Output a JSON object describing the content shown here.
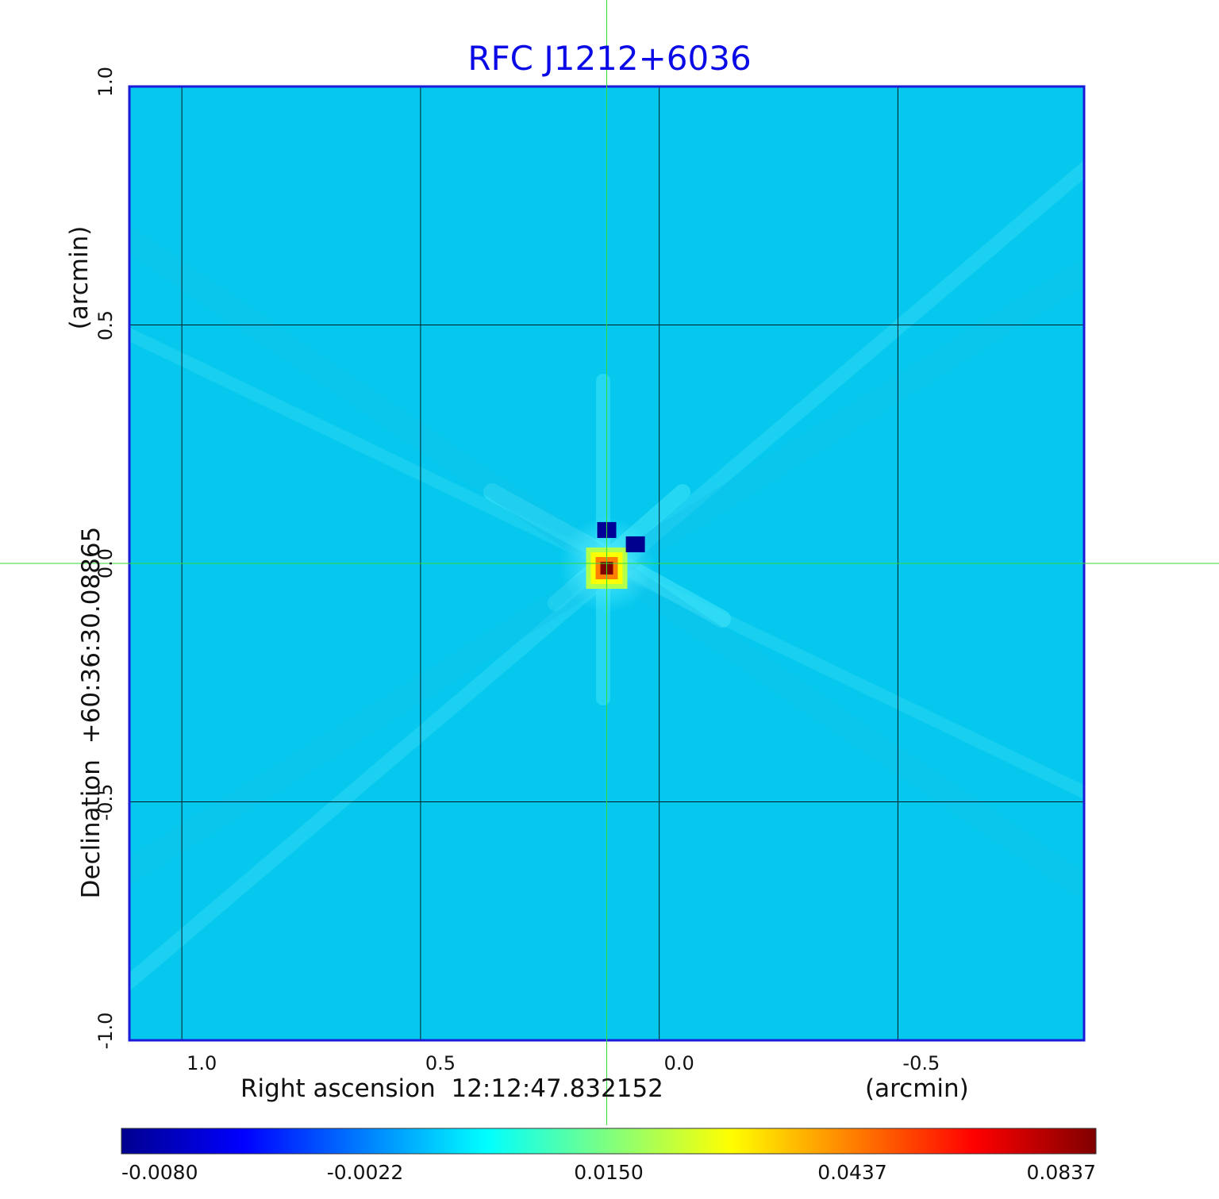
{
  "chart_data": {
    "type": "heatmap",
    "title": "RFC J1212+6036",
    "xlabel": "Right ascension  12:12:47.832152",
    "xunit": "(arcmin)",
    "ylabel": "Declination  +60:36:30.08865",
    "yunit": "(arcmin)",
    "xlim": [
      1.11,
      -0.89
    ],
    "ylim": [
      -1.0,
      1.0
    ],
    "x_ticks": [
      "1.0",
      "0.5",
      "0.0",
      "-0.5"
    ],
    "x_tick_values": [
      1.0,
      0.5,
      0.0,
      -0.5
    ],
    "y_ticks": [
      "-1.0",
      "-0.5",
      "0.0",
      "0.5",
      "1.0"
    ],
    "y_tick_values": [
      -1.0,
      -0.5,
      0.0,
      0.5,
      1.0
    ],
    "grid": true,
    "colormap": "jet",
    "colorbar_ticks": [
      "-0.0080",
      "-0.0022",
      "0.0150",
      "0.0437",
      "0.0837"
    ],
    "colorbar_range": [
      -0.008,
      0.0837
    ],
    "background_value": 0.0,
    "features": [
      {
        "kind": "peak",
        "x": 0.11,
        "y": -0.01,
        "value": 0.0837
      },
      {
        "kind": "minimum",
        "x": 0.05,
        "y": 0.04,
        "value": -0.008
      },
      {
        "kind": "minimum",
        "x": 0.11,
        "y": 0.07,
        "value": -0.007
      }
    ],
    "crosshair": {
      "x": 0.11,
      "y": 0.0
    }
  },
  "colors": {
    "title": "#0a0ae6",
    "frame": "#1a1ad8",
    "grid": "#000000",
    "crosshair": "#33dd33",
    "background_field": "#06c8ee"
  }
}
